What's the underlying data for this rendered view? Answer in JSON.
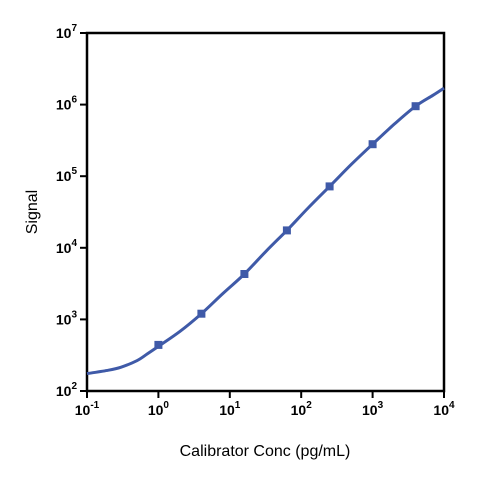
{
  "chart_data": {
    "type": "line",
    "title": "",
    "xlabel": "Calibrator Conc (pg/mL)",
    "ylabel": "Signal",
    "xscale": "log",
    "yscale": "log",
    "xlim": [
      0.1,
      10000
    ],
    "ylim": [
      100,
      10000000
    ],
    "x_ticks": [
      {
        "base": "10",
        "exp": "-1",
        "value": 0.1
      },
      {
        "base": "10",
        "exp": "0",
        "value": 1
      },
      {
        "base": "10",
        "exp": "1",
        "value": 10
      },
      {
        "base": "10",
        "exp": "2",
        "value": 100
      },
      {
        "base": "10",
        "exp": "3",
        "value": 1000
      },
      {
        "base": "10",
        "exp": "4",
        "value": 10000
      }
    ],
    "y_ticks": [
      {
        "base": "10",
        "exp": "2",
        "value": 100
      },
      {
        "base": "10",
        "exp": "3",
        "value": 1000
      },
      {
        "base": "10",
        "exp": "4",
        "value": 10000
      },
      {
        "base": "10",
        "exp": "5",
        "value": 100000
      },
      {
        "base": "10",
        "exp": "6",
        "value": 1000000
      },
      {
        "base": "10",
        "exp": "7",
        "value": 10000000
      }
    ],
    "grid": false,
    "legend": "none",
    "series": [
      {
        "color": "#3f5aa8",
        "marker": "square",
        "points": [
          {
            "x": 1,
            "y": 440
          },
          {
            "x": 4,
            "y": 1200
          },
          {
            "x": 16,
            "y": 4300
          },
          {
            "x": 63,
            "y": 17500
          },
          {
            "x": 250,
            "y": 72000
          },
          {
            "x": 1000,
            "y": 280000
          },
          {
            "x": 4000,
            "y": 950000
          }
        ],
        "fit_curve": [
          {
            "x": 0.1,
            "y": 175
          },
          {
            "x": 0.2,
            "y": 195
          },
          {
            "x": 0.3,
            "y": 215
          },
          {
            "x": 0.5,
            "y": 265
          },
          {
            "x": 0.7,
            "y": 330
          },
          {
            "x": 1,
            "y": 420
          },
          {
            "x": 2,
            "y": 680
          },
          {
            "x": 4,
            "y": 1200
          },
          {
            "x": 8,
            "y": 2300
          },
          {
            "x": 16,
            "y": 4300
          },
          {
            "x": 32,
            "y": 8900
          },
          {
            "x": 63,
            "y": 17500
          },
          {
            "x": 125,
            "y": 36000
          },
          {
            "x": 250,
            "y": 72000
          },
          {
            "x": 500,
            "y": 145000
          },
          {
            "x": 1000,
            "y": 280000
          },
          {
            "x": 2000,
            "y": 530000
          },
          {
            "x": 4000,
            "y": 950000
          },
          {
            "x": 7000,
            "y": 1350000
          },
          {
            "x": 10000,
            "y": 1700000
          }
        ]
      }
    ]
  }
}
